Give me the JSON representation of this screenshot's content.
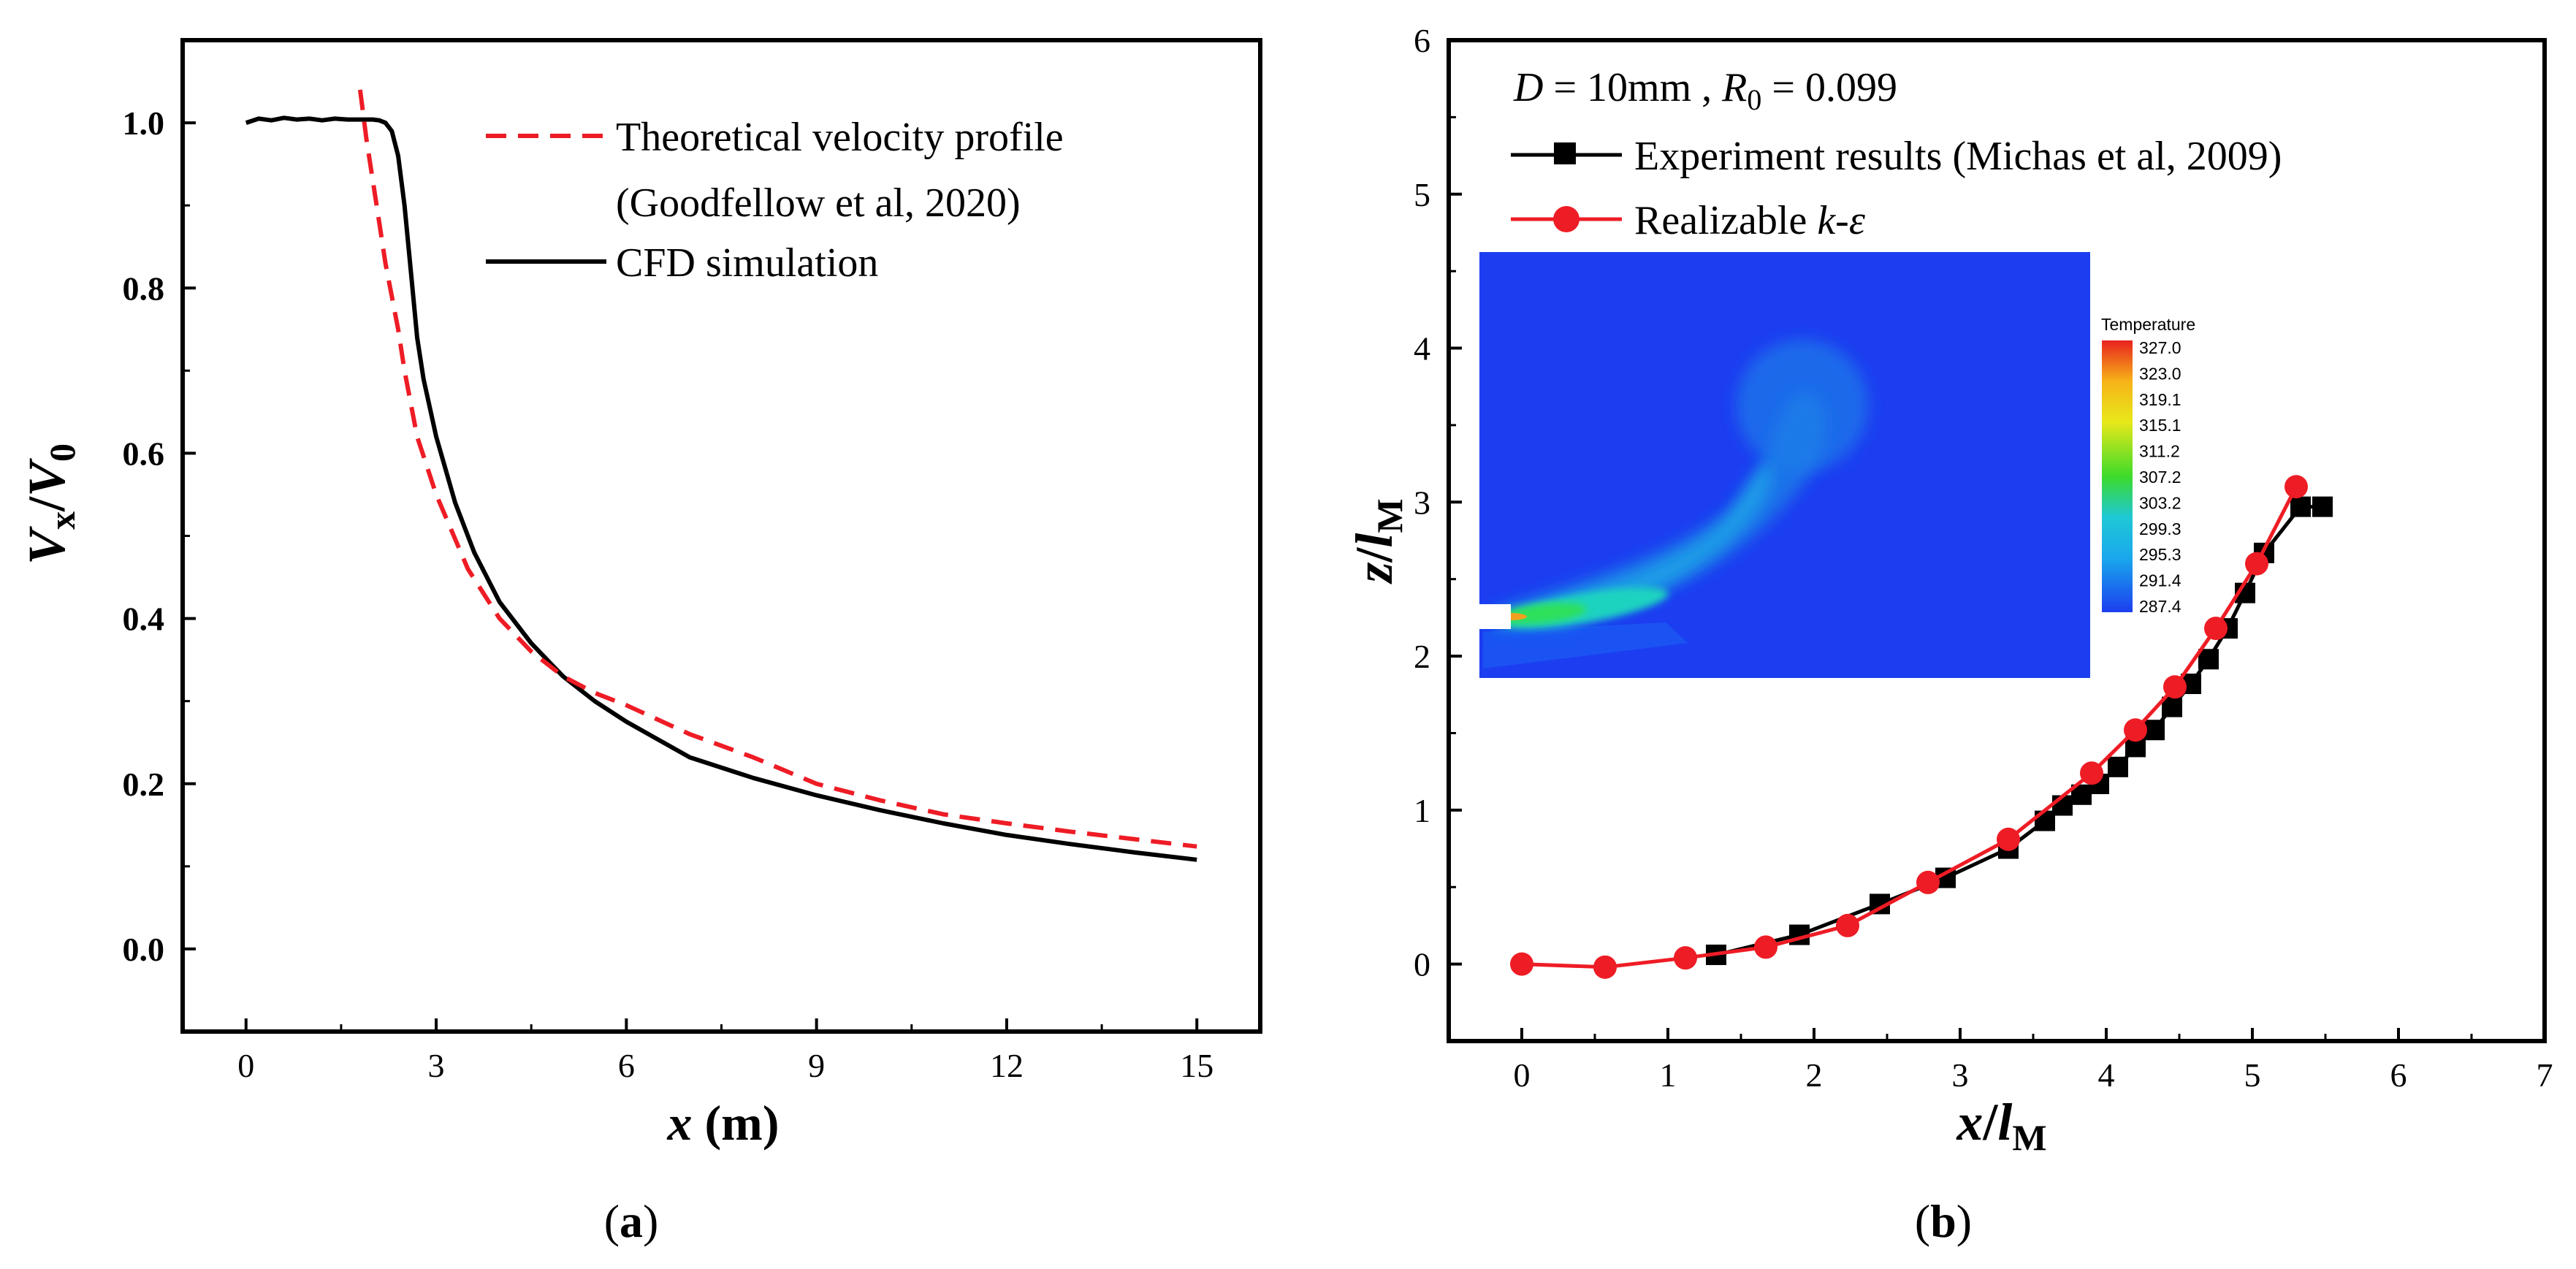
{
  "chart_data": [
    {
      "panel_label": "(a)",
      "panel_label_letter": "a",
      "type": "line",
      "xlabel": {
        "var": "x",
        "unit": "(m)"
      },
      "ylabel": {
        "var": "V",
        "sub": "x",
        "slash": "/",
        "var2": "V",
        "sub2": "0"
      },
      "xlim": [
        -1,
        16
      ],
      "ylim": [
        -0.1,
        1.1
      ],
      "xticks": [
        "0",
        "3",
        "6",
        "9",
        "12",
        "15"
      ],
      "yticks": [
        "0.0",
        "0.2",
        "0.4",
        "0.6",
        "0.8",
        "1.0"
      ],
      "legend": {
        "position": "top-right",
        "entries": [
          {
            "line1": "Theoretical velocity profile",
            "line2": "(Goodfellow et al, 2020)",
            "color": "#ee1c25",
            "style": "dashed"
          },
          {
            "line1": "CFD simulation",
            "color": "#000000",
            "style": "solid"
          }
        ]
      },
      "series": [
        {
          "name": "CFD simulation",
          "color": "#000000",
          "x": [
            0,
            0.2,
            0.4,
            0.6,
            0.8,
            1.0,
            1.2,
            1.4,
            1.6,
            1.8,
            2.0,
            2.1,
            2.2,
            2.3,
            2.4,
            2.5,
            2.6,
            2.7,
            2.8,
            3.0,
            3.3,
            3.6,
            4.0,
            4.5,
            5.0,
            5.5,
            6.0,
            7.0,
            8.0,
            9.0,
            10.0,
            11.0,
            12.0,
            13.0,
            14.0,
            15.0
          ],
          "y": [
            1.0,
            1.005,
            1.003,
            1.006,
            1.004,
            1.005,
            1.003,
            1.005,
            1.004,
            1.004,
            1.004,
            1.003,
            1.0,
            0.99,
            0.96,
            0.9,
            0.82,
            0.74,
            0.69,
            0.62,
            0.54,
            0.48,
            0.42,
            0.37,
            0.33,
            0.3,
            0.275,
            0.232,
            0.207,
            0.186,
            0.168,
            0.152,
            0.138,
            0.127,
            0.117,
            0.108
          ]
        },
        {
          "name": "Theoretical velocity profile",
          "color": "#ee1c25",
          "x": [
            1.8,
            1.9,
            2.0,
            2.1,
            2.2,
            2.3,
            2.4,
            2.5,
            2.7,
            3.0,
            3.5,
            4.0,
            4.5,
            5.0,
            5.5,
            6.0,
            7.0,
            8.0,
            9.0,
            10.0,
            11.0,
            12.0,
            13.0,
            14.0,
            15.0
          ],
          "y": [
            1.04,
            0.98,
            0.93,
            0.88,
            0.83,
            0.79,
            0.75,
            0.7,
            0.62,
            0.55,
            0.46,
            0.4,
            0.36,
            0.33,
            0.31,
            0.295,
            0.26,
            0.232,
            0.2,
            0.18,
            0.163,
            0.152,
            0.142,
            0.133,
            0.124
          ]
        }
      ]
    },
    {
      "panel_label": "(b)",
      "panel_label_letter": "b",
      "type": "line",
      "xlabel": {
        "var": "x",
        "slash": "/",
        "var2": "l",
        "sub": "M"
      },
      "ylabel": {
        "var": "z",
        "slash": "/",
        "var2": "l",
        "sub": "M"
      },
      "xlim": [
        -0.5,
        7
      ],
      "ylim": [
        -0.5,
        6
      ],
      "xticks": [
        "0",
        "1",
        "2",
        "3",
        "4",
        "5",
        "6",
        "7"
      ],
      "yticks": [
        "0",
        "1",
        "2",
        "3",
        "4",
        "5",
        "6"
      ],
      "annotation": {
        "part1": "D",
        "part2": " = 10mm ,  ",
        "part3": "R",
        "part4": "0",
        "part5": " = 0.099"
      },
      "legend": {
        "position": "top-left",
        "entries": [
          {
            "label": "Experiment results (Michas et al, 2009)",
            "color": "#000000",
            "marker": "square"
          },
          {
            "label_prefix": "Realizable ",
            "label_italic": "k-ε",
            "color": "#ee1c25",
            "marker": "circle"
          }
        ]
      },
      "series": [
        {
          "name": "Experiment results (Michas et al, 2009)",
          "color": "#000000",
          "marker": "square",
          "x": [
            1.33,
            1.9,
            2.45,
            2.9,
            3.33,
            3.58,
            3.7,
            3.83,
            3.95,
            4.08,
            4.2,
            4.33,
            4.45,
            4.58,
            4.7,
            4.83,
            4.95,
            5.08,
            5.33,
            5.48
          ],
          "y": [
            0.06,
            0.19,
            0.39,
            0.56,
            0.75,
            0.93,
            1.03,
            1.1,
            1.17,
            1.28,
            1.41,
            1.52,
            1.67,
            1.82,
            1.98,
            2.18,
            2.41,
            2.67,
            2.97,
            2.97
          ]
        },
        {
          "name": "Realizable k-ε",
          "color": "#ee1c25",
          "marker": "circle",
          "x": [
            0.0,
            0.57,
            1.12,
            1.67,
            2.23,
            2.78,
            3.33,
            3.9,
            4.2,
            4.47,
            4.75,
            5.03,
            5.3
          ],
          "y": [
            0.0,
            -0.02,
            0.04,
            0.11,
            0.25,
            0.53,
            0.81,
            1.24,
            1.52,
            1.8,
            2.18,
            2.6,
            3.1
          ]
        }
      ],
      "inset": {
        "legend_title": "Temperature",
        "colorbar_labels": [
          "327.0",
          "323.0",
          "319.1",
          "315.1",
          "311.2",
          "307.2",
          "303.2",
          "299.3",
          "295.3",
          "291.4",
          "287.4"
        ],
        "colors": [
          "#e8221e",
          "#f06a1c",
          "#f7b318",
          "#e7e81a",
          "#a3e420",
          "#3ddb2a",
          "#1fd39a",
          "#1ec8d5",
          "#1aa8ec",
          "#1a74ee",
          "#1c3ef0"
        ],
        "background": "#1c3ef0"
      }
    }
  ]
}
